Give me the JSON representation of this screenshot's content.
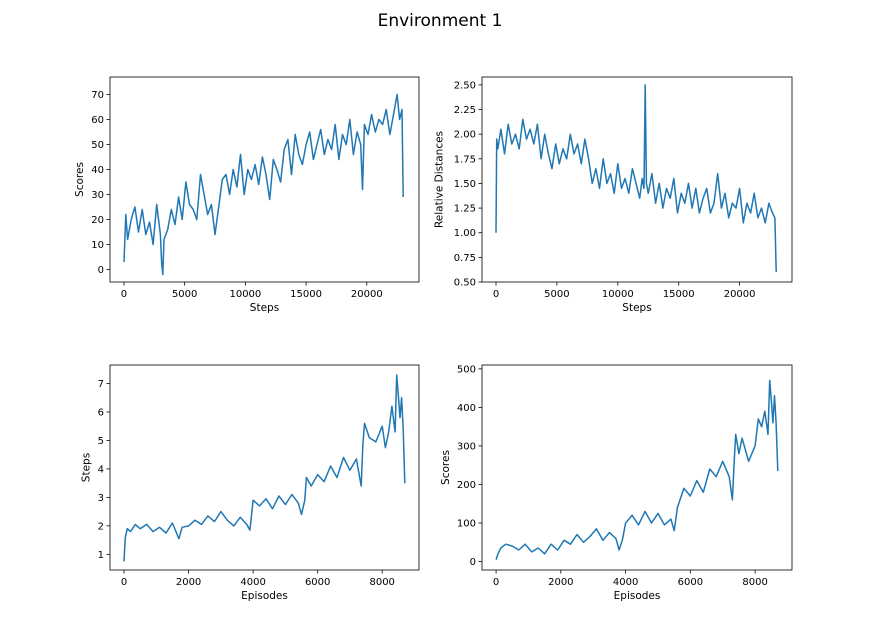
{
  "figure": {
    "title": "Environment 1"
  },
  "series_color": "#1f77b4",
  "chart_data": [
    {
      "type": "line",
      "xlabel": "Steps",
      "ylabel": "Scores",
      "xlim": [
        -1150,
        24300
      ],
      "ylim": [
        -5,
        77
      ],
      "xticks": [
        0,
        5000,
        10000,
        15000,
        20000
      ],
      "yticks": [
        0,
        10,
        20,
        30,
        40,
        50,
        60,
        70
      ],
      "ytick_labels": [
        "0",
        "10",
        "20",
        "30",
        "40",
        "50",
        "60",
        "70"
      ],
      "series": [
        {
          "name": "Scores",
          "x": [
            0,
            150,
            300,
            600,
            900,
            1200,
            1500,
            1800,
            2100,
            2400,
            2700,
            3000,
            3100,
            3200,
            3300,
            3600,
            3900,
            4200,
            4500,
            4800,
            5100,
            5400,
            5700,
            6000,
            6300,
            6600,
            6900,
            7200,
            7500,
            7800,
            8100,
            8400,
            8700,
            9000,
            9300,
            9600,
            9900,
            10200,
            10500,
            10800,
            11100,
            11400,
            11700,
            12000,
            12300,
            12600,
            12900,
            13200,
            13500,
            13800,
            14100,
            14400,
            14700,
            15000,
            15300,
            15600,
            15900,
            16200,
            16500,
            16800,
            17100,
            17400,
            17700,
            18000,
            18300,
            18600,
            18900,
            19200,
            19500,
            19650,
            19800,
            20100,
            20400,
            20700,
            21000,
            21300,
            21600,
            21900,
            22200,
            22500,
            22700,
            22900,
            23000
          ],
          "y": [
            3,
            22,
            12,
            20,
            25,
            15,
            24,
            14,
            19,
            10,
            26,
            14,
            3,
            -2,
            12,
            16,
            24,
            18,
            29,
            20,
            35,
            26,
            24,
            20,
            38,
            30,
            22,
            26,
            14,
            25,
            36,
            38,
            30,
            40,
            33,
            46,
            30,
            40,
            36,
            42,
            34,
            45,
            38,
            28,
            44,
            40,
            35,
            48,
            52,
            38,
            54,
            46,
            42,
            50,
            55,
            44,
            50,
            56,
            46,
            52,
            48,
            58,
            44,
            54,
            50,
            60,
            46,
            55,
            50,
            32,
            58,
            54,
            62,
            55,
            60,
            58,
            64,
            54,
            62,
            70,
            60,
            64,
            29
          ]
        }
      ]
    },
    {
      "type": "line",
      "xlabel": "Steps",
      "ylabel": "Relative Distances",
      "xlim": [
        -1150,
        24300
      ],
      "ylim": [
        0.5,
        2.58
      ],
      "xticks": [
        0,
        5000,
        10000,
        15000,
        20000
      ],
      "yticks": [
        0.5,
        0.75,
        1.0,
        1.25,
        1.5,
        1.75,
        2.0,
        2.25,
        2.5
      ],
      "ytick_labels": [
        "0.50",
        "0.75",
        "1.00",
        "1.25",
        "1.50",
        "1.75",
        "2.00",
        "2.25",
        "2.50"
      ],
      "series": [
        {
          "name": "Relative Distances",
          "x": [
            0,
            60,
            150,
            400,
            700,
            1000,
            1300,
            1600,
            1900,
            2200,
            2500,
            2800,
            3100,
            3400,
            3700,
            4000,
            4300,
            4600,
            4900,
            5200,
            5500,
            5800,
            6100,
            6400,
            6700,
            7000,
            7300,
            7600,
            7900,
            8200,
            8500,
            8800,
            9100,
            9400,
            9700,
            10000,
            10300,
            10600,
            10900,
            11200,
            11500,
            11800,
            12000,
            12150,
            12250,
            12350,
            12500,
            12800,
            13100,
            13400,
            13700,
            14000,
            14300,
            14600,
            14900,
            15200,
            15500,
            15800,
            16100,
            16400,
            16700,
            17000,
            17300,
            17600,
            17900,
            18200,
            18500,
            18800,
            19100,
            19400,
            19700,
            20000,
            20300,
            20600,
            20900,
            21200,
            21500,
            21800,
            22100,
            22400,
            22700,
            22900,
            23000
          ],
          "y": [
            1.0,
            1.95,
            1.85,
            2.05,
            1.8,
            2.1,
            1.9,
            2.0,
            1.85,
            2.15,
            1.95,
            2.05,
            1.9,
            2.1,
            1.75,
            2.0,
            1.8,
            1.65,
            1.9,
            1.7,
            1.85,
            1.75,
            2.0,
            1.8,
            1.9,
            1.7,
            1.95,
            1.75,
            1.5,
            1.65,
            1.45,
            1.75,
            1.5,
            1.6,
            1.4,
            1.7,
            1.45,
            1.55,
            1.4,
            1.65,
            1.5,
            1.35,
            1.55,
            1.45,
            2.5,
            1.5,
            1.4,
            1.6,
            1.3,
            1.5,
            1.25,
            1.45,
            1.35,
            1.55,
            1.2,
            1.4,
            1.3,
            1.5,
            1.25,
            1.45,
            1.2,
            1.35,
            1.45,
            1.2,
            1.3,
            1.6,
            1.25,
            1.4,
            1.15,
            1.3,
            1.25,
            1.45,
            1.1,
            1.3,
            1.2,
            1.4,
            1.15,
            1.25,
            1.1,
            1.3,
            1.2,
            1.15,
            0.6
          ]
        }
      ]
    },
    {
      "type": "line",
      "xlabel": "Episodes",
      "ylabel": "Steps",
      "xlim": [
        -435,
        9140
      ],
      "ylim": [
        0.45,
        7.65
      ],
      "xticks": [
        0,
        2000,
        4000,
        6000,
        8000
      ],
      "yticks": [
        1,
        2,
        3,
        4,
        5,
        6,
        7
      ],
      "ytick_labels": [
        "1",
        "2",
        "3",
        "4",
        "5",
        "6",
        "7"
      ],
      "series": [
        {
          "name": "Steps",
          "x": [
            0,
            40,
            100,
            200,
            350,
            500,
            700,
            900,
            1100,
            1300,
            1500,
            1700,
            1800,
            2000,
            2200,
            2400,
            2600,
            2800,
            3000,
            3200,
            3400,
            3600,
            3800,
            3900,
            4000,
            4200,
            4400,
            4600,
            4800,
            5000,
            5200,
            5400,
            5500,
            5600,
            5650,
            5800,
            6000,
            6200,
            6400,
            6600,
            6800,
            7000,
            7200,
            7350,
            7400,
            7450,
            7600,
            7800,
            8000,
            8100,
            8200,
            8300,
            8400,
            8450,
            8500,
            8550,
            8600,
            8650,
            8700
          ],
          "y": [
            0.75,
            1.6,
            1.9,
            1.8,
            2.05,
            1.9,
            2.05,
            1.8,
            1.95,
            1.75,
            2.1,
            1.55,
            1.95,
            2.0,
            2.2,
            2.05,
            2.35,
            2.15,
            2.5,
            2.2,
            2.0,
            2.3,
            2.05,
            1.85,
            2.9,
            2.7,
            2.95,
            2.6,
            3.05,
            2.75,
            3.1,
            2.8,
            2.4,
            2.9,
            3.7,
            3.4,
            3.8,
            3.55,
            4.1,
            3.7,
            4.4,
            3.95,
            4.35,
            3.4,
            4.8,
            5.6,
            5.1,
            4.95,
            5.5,
            4.75,
            5.3,
            6.2,
            5.3,
            7.3,
            6.6,
            5.8,
            6.5,
            5.4,
            3.5
          ]
        }
      ]
    },
    {
      "type": "line",
      "xlabel": "Episodes",
      "ylabel": "Scores",
      "xlim": [
        -435,
        9140
      ],
      "ylim": [
        -22,
        510
      ],
      "xticks": [
        0,
        2000,
        4000,
        6000,
        8000
      ],
      "yticks": [
        0,
        100,
        200,
        300,
        400,
        500
      ],
      "ytick_labels": [
        "0",
        "100",
        "200",
        "300",
        "400",
        "500"
      ],
      "series": [
        {
          "name": "Scores",
          "x": [
            0,
            60,
            150,
            300,
            500,
            700,
            900,
            1100,
            1300,
            1500,
            1700,
            1900,
            2100,
            2300,
            2500,
            2700,
            2900,
            3100,
            3300,
            3500,
            3700,
            3800,
            3900,
            4000,
            4200,
            4400,
            4600,
            4800,
            5000,
            5200,
            5400,
            5500,
            5600,
            5800,
            6000,
            6200,
            6400,
            6600,
            6800,
            7000,
            7200,
            7300,
            7350,
            7400,
            7500,
            7600,
            7800,
            8000,
            8100,
            8200,
            8300,
            8400,
            8450,
            8500,
            8550,
            8600,
            8650,
            8700
          ],
          "y": [
            5,
            20,
            35,
            45,
            40,
            30,
            45,
            25,
            35,
            20,
            45,
            30,
            55,
            45,
            70,
            50,
            65,
            85,
            55,
            75,
            60,
            30,
            55,
            100,
            120,
            95,
            130,
            100,
            125,
            95,
            110,
            80,
            140,
            190,
            170,
            210,
            180,
            240,
            220,
            260,
            220,
            160,
            250,
            330,
            280,
            320,
            260,
            300,
            370,
            350,
            390,
            330,
            470,
            420,
            360,
            430,
            360,
            235
          ]
        }
      ]
    }
  ]
}
